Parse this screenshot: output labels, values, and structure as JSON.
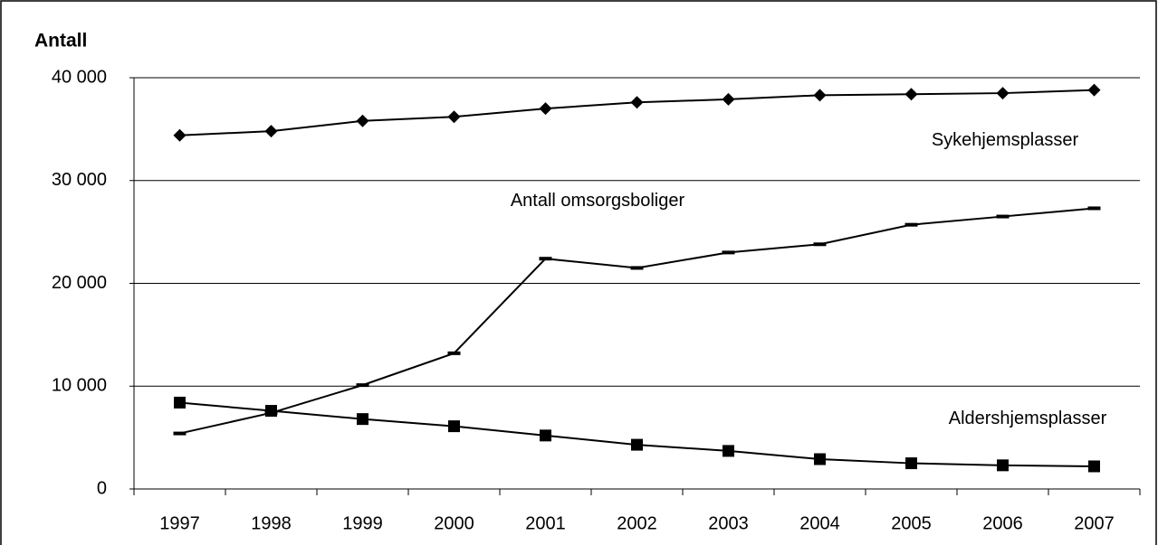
{
  "chart_data": {
    "type": "line",
    "y_label": "Antall",
    "categories": [
      "1997",
      "1998",
      "1999",
      "2000",
      "2001",
      "2002",
      "2003",
      "2004",
      "2005",
      "2006",
      "2007"
    ],
    "series": [
      {
        "name": "Sykehjemsplasser",
        "color": "#000000",
        "marker": "diamond",
        "values": [
          34400,
          34800,
          35800,
          36200,
          37000,
          37600,
          37900,
          38300,
          38400,
          38500,
          38800
        ]
      },
      {
        "name": "Antall omsorgsboliger",
        "color": "#000000",
        "marker": "dash",
        "values": [
          5400,
          7400,
          10100,
          13200,
          22400,
          21500,
          23000,
          23800,
          25700,
          26500,
          27300
        ]
      },
      {
        "name": "Aldershjemsplasser",
        "color": "#000000",
        "marker": "square",
        "values": [
          8400,
          7600,
          6800,
          6100,
          5200,
          4300,
          3700,
          2900,
          2500,
          2300,
          2200
        ]
      }
    ],
    "ylim": [
      0,
      40000
    ],
    "yticks": [
      0,
      {
        "value": 10000,
        "label": "10 000"
      },
      {
        "value": 20000,
        "label": "20 000"
      },
      {
        "value": 30000,
        "label": "30 000"
      },
      {
        "value": 40000,
        "label": "40 000"
      }
    ],
    "grid": true
  }
}
